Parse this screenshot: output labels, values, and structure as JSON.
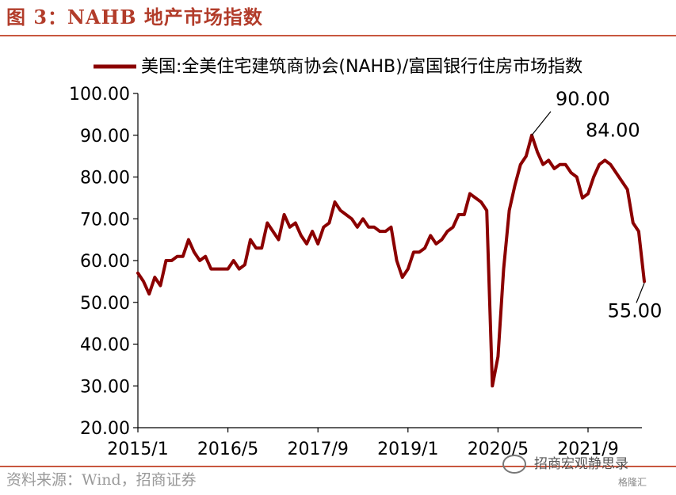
{
  "header": {
    "title": "图 3：NAHB 地产市场指数"
  },
  "footer": {
    "source": "资料来源：Wind，招商证券"
  },
  "watermark": {
    "text": "招商宏观静思录",
    "sub": "格隆汇"
  },
  "colors": {
    "series": "#8b0000",
    "accent": "#c8573f"
  },
  "chart_data": {
    "type": "line",
    "title": "",
    "xlabel": "",
    "ylabel": "",
    "ylim": [
      20,
      100
    ],
    "yticks": [
      "20.00",
      "30.00",
      "40.00",
      "50.00",
      "60.00",
      "70.00",
      "80.00",
      "90.00",
      "100.00"
    ],
    "xticks": [
      "2015/1",
      "2016/5",
      "2017/9",
      "2019/1",
      "2020/5",
      "2021/9"
    ],
    "grid": false,
    "legend": "top",
    "series": [
      {
        "name": "美国:全美住宅建筑商协会(NAHB)/富国银行住房市场指数",
        "start": "2015/1",
        "frequency": "monthly",
        "values": [
          57,
          55,
          52,
          56,
          54,
          60,
          60,
          61,
          61,
          65,
          62,
          60,
          61,
          58,
          58,
          58,
          58,
          60,
          58,
          59,
          65,
          63,
          63,
          69,
          67,
          65,
          71,
          68,
          69,
          66,
          64,
          67,
          64,
          68,
          69,
          74,
          72,
          71,
          70,
          68,
          70,
          68,
          68,
          67,
          67,
          68,
          60,
          56,
          58,
          62,
          62,
          63,
          66,
          64,
          65,
          67,
          68,
          71,
          71,
          76,
          75,
          74,
          72,
          30,
          37,
          58,
          72,
          78,
          83,
          85,
          90,
          86,
          83,
          84,
          82,
          83,
          83,
          81,
          80,
          75,
          76,
          80,
          83,
          84,
          83,
          81,
          79,
          77,
          69,
          67,
          55
        ]
      }
    ],
    "annotations": [
      {
        "x": "2020/11",
        "y": 90,
        "label": "90.00"
      },
      {
        "x": "2021/12",
        "y": 84,
        "label": "84.00"
      },
      {
        "x": "2022/7",
        "y": 55,
        "label": "55.00"
      }
    ]
  }
}
